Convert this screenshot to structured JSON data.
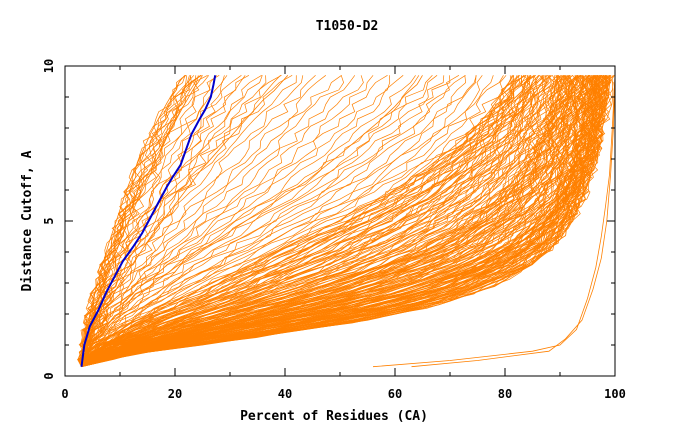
{
  "chart_data": {
    "type": "line",
    "title": "T1050-D2",
    "xlabel": "Percent of Residues (CA)",
    "ylabel": "Distance Cutoff, A",
    "xlim": [
      0,
      100
    ],
    "ylim": [
      0,
      10
    ],
    "x_ticks": [
      0,
      20,
      40,
      60,
      80,
      100
    ],
    "y_ticks": [
      0,
      5,
      10
    ],
    "grid": false,
    "colors": {
      "highlight": "#0000cc",
      "others": "#ff8000"
    },
    "highlight_series": {
      "x": [
        3,
        3.5,
        4.5,
        6,
        7.5,
        9,
        10.5,
        12.5,
        14,
        15.5,
        17,
        18.5,
        19.5,
        21,
        22,
        23,
        24.5,
        25.5,
        26.5,
        27,
        27.3
      ],
      "y": [
        0.3,
        1,
        1.6,
        2.1,
        2.7,
        3.2,
        3.7,
        4.2,
        4.6,
        5.1,
        5.6,
        6.1,
        6.4,
        6.8,
        7.3,
        7.8,
        8.3,
        8.6,
        9.0,
        9.4,
        9.7
      ]
    },
    "envelope_series": [
      {
        "x": [
          3,
          12,
          25,
          40,
          55,
          68,
          78,
          85,
          90,
          93,
          95,
          96.5,
          97.5,
          98.2,
          98.8,
          99.2
        ],
        "y": [
          0.3,
          0.7,
          1.0,
          1.4,
          1.8,
          2.3,
          2.9,
          3.6,
          4.4,
          5.3,
          6.2,
          7.0,
          7.8,
          8.5,
          9.1,
          9.7
        ]
      },
      {
        "x": [
          3,
          10,
          22,
          36,
          50,
          63,
          74,
          82,
          87,
          90,
          92,
          93.2,
          94.2,
          95,
          95.6,
          96
        ],
        "y": [
          0.3,
          0.8,
          1.2,
          1.7,
          2.2,
          2.8,
          3.5,
          4.3,
          5.1,
          5.9,
          6.7,
          7.4,
          8.1,
          8.7,
          9.2,
          9.7
        ]
      },
      {
        "x": [
          3,
          8,
          18,
          30,
          42,
          54,
          64,
          72,
          78,
          82,
          85,
          87,
          88.5,
          89.5,
          90.3,
          91
        ],
        "y": [
          0.3,
          0.9,
          1.4,
          2.0,
          2.6,
          3.3,
          4.0,
          4.8,
          5.6,
          6.4,
          7.1,
          7.8,
          8.4,
          8.9,
          9.3,
          9.7
        ]
      },
      {
        "x": [
          3,
          6,
          12,
          20,
          28,
          36,
          44,
          52,
          59,
          65,
          70,
          74,
          77,
          79,
          80.5,
          81.5
        ],
        "y": [
          0.3,
          1.0,
          1.7,
          2.4,
          3.1,
          3.8,
          4.5,
          5.2,
          5.9,
          6.6,
          7.3,
          7.9,
          8.5,
          9.0,
          9.4,
          9.7
        ]
      },
      {
        "x": [
          3,
          5,
          9,
          14,
          20,
          26,
          32,
          38,
          44,
          49,
          53,
          57,
          60,
          62,
          64,
          65
        ],
        "y": [
          0.3,
          1.1,
          1.9,
          2.7,
          3.5,
          4.2,
          4.9,
          5.6,
          6.3,
          7.0,
          7.6,
          8.2,
          8.7,
          9.1,
          9.4,
          9.7
        ]
      },
      {
        "x": [
          3,
          4.5,
          7,
          10,
          13,
          16,
          19,
          22,
          25,
          28,
          31,
          34,
          36,
          38,
          39.5,
          40.5
        ],
        "y": [
          0.3,
          1.2,
          2.1,
          3.0,
          3.8,
          4.6,
          5.3,
          6.0,
          6.7,
          7.3,
          7.9,
          8.5,
          8.9,
          9.2,
          9.5,
          9.7
        ]
      },
      {
        "x": [
          3,
          4,
          5.5,
          7.5,
          9.5,
          11.5,
          13.5,
          15.5,
          17,
          18.5,
          20,
          21.5,
          22.5,
          23.5,
          24.3,
          25
        ],
        "y": [
          0.3,
          1.3,
          2.2,
          3.2,
          4.1,
          5.0,
          5.8,
          6.5,
          7.1,
          7.7,
          8.2,
          8.7,
          9.0,
          9.3,
          9.5,
          9.7
        ]
      },
      {
        "x": [
          3,
          3.8,
          5,
          6.5,
          8,
          9.5,
          11,
          12.5,
          14,
          15.5,
          17,
          18.5,
          19.5,
          20.5,
          21.2,
          22
        ],
        "y": [
          0.3,
          1.4,
          2.4,
          3.4,
          4.3,
          5.1,
          5.9,
          6.6,
          7.2,
          7.8,
          8.3,
          8.8,
          9.1,
          9.4,
          9.6,
          9.7
        ]
      }
    ],
    "low_outlier_series": [
      {
        "x": [
          56,
          70,
          85,
          90,
          93,
          95,
          96.5,
          97.5,
          98.3,
          99,
          99.5,
          100
        ],
        "y": [
          0.3,
          0.5,
          0.8,
          1.0,
          1.5,
          2.5,
          3.5,
          4.5,
          5.5,
          6.5,
          8.0,
          9.7
        ]
      },
      {
        "x": [
          63,
          75,
          88,
          91,
          94,
          96,
          97.5,
          98.5,
          99.2,
          99.7,
          100
        ],
        "y": [
          0.3,
          0.5,
          0.8,
          1.2,
          1.8,
          2.8,
          3.8,
          5.0,
          6.5,
          8.0,
          9.7
        ]
      }
    ]
  }
}
